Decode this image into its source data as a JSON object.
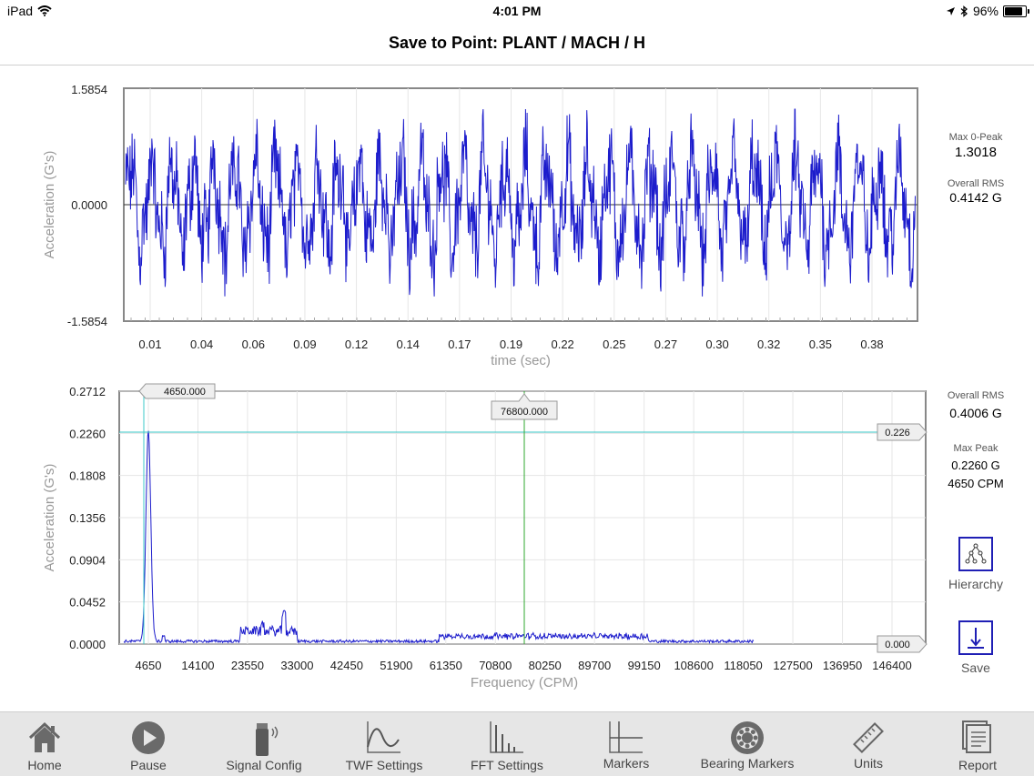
{
  "status_bar": {
    "device": "iPad",
    "time": "4:01 PM",
    "battery": "96%",
    "battery_level": 0.96
  },
  "nav": {
    "title": "Save to Point: PLANT / MACH / H"
  },
  "waveform": {
    "ylabel": "Acceleration (G's)",
    "xlabel": "time (sec)",
    "ylim": [
      -1.5854,
      1.5854
    ],
    "y_ticks": [
      "1.5854",
      "0.0000",
      "-1.5854"
    ],
    "x_ticks": [
      "0.01",
      "0.04",
      "0.06",
      "0.09",
      "0.12",
      "0.14",
      "0.17",
      "0.19",
      "0.22",
      "0.25",
      "0.27",
      "0.30",
      "0.32",
      "0.35",
      "0.38"
    ],
    "stats": {
      "max_label": "Max 0-Peak",
      "max_value": "1.3018",
      "rms_label": "Overall RMS",
      "rms_value": "0.4142 G"
    }
  },
  "spectrum": {
    "ylabel": "Acceleration (G's)",
    "xlabel": "Frequency (CPM)",
    "ylim": [
      0,
      0.2712
    ],
    "y_ticks": [
      "0.2712",
      "0.2260",
      "0.1808",
      "0.1356",
      "0.0904",
      "0.0452",
      "0.0000"
    ],
    "x_ticks": [
      "4650",
      "14100",
      "23550",
      "33000",
      "42450",
      "51900",
      "61350",
      "70800",
      "80250",
      "89700",
      "99150",
      "108600",
      "118050",
      "127500",
      "136950",
      "146400"
    ],
    "cursor_peak_label": "4650.000",
    "cursor_center_label": "76800.000",
    "hline_label": "0.226",
    "baseline_label": "0.000",
    "stats": {
      "rms_label": "Overall RMS",
      "rms_value": "0.4006 G",
      "peak_label": "Max Peak",
      "peak_value": "0.2260 G",
      "peak_freq": "4650 CPM"
    }
  },
  "side_buttons": {
    "hierarchy": "Hierarchy",
    "save": "Save"
  },
  "toolbar": {
    "home": "Home",
    "pause": "Pause",
    "signal_config": "Signal Config",
    "twf_settings": "TWF Settings",
    "fft_settings": "FFT Settings",
    "markers": "Markers",
    "bearing_markers": "Bearing Markers",
    "units": "Units",
    "report": "Report"
  },
  "colors": {
    "trace": "#1c1ccc",
    "cursor": "#3cc8c8",
    "center_cursor": "#2fa82f",
    "accent": "#1f1fb5"
  },
  "chart_data": [
    {
      "type": "line",
      "title": "",
      "xlabel": "time (sec)",
      "ylabel": "Acceleration (G's)",
      "ylim": [
        -1.5854,
        1.5854
      ],
      "grid": true,
      "series": [
        {
          "values_summary": "random vibration waveform, max 0-peak 1.3018, RMS 0.4142"
        }
      ]
    },
    {
      "type": "line",
      "title": "",
      "xlabel": "Frequency (CPM)",
      "ylabel": "Acceleration (G's)",
      "ylim": [
        0,
        0.2712
      ],
      "grid": true,
      "peaks": [
        {
          "x": 4650,
          "y": 0.226
        },
        {
          "x": 30500,
          "y": 0.027
        },
        {
          "x": 26500,
          "y": 0.017
        }
      ]
    }
  ]
}
